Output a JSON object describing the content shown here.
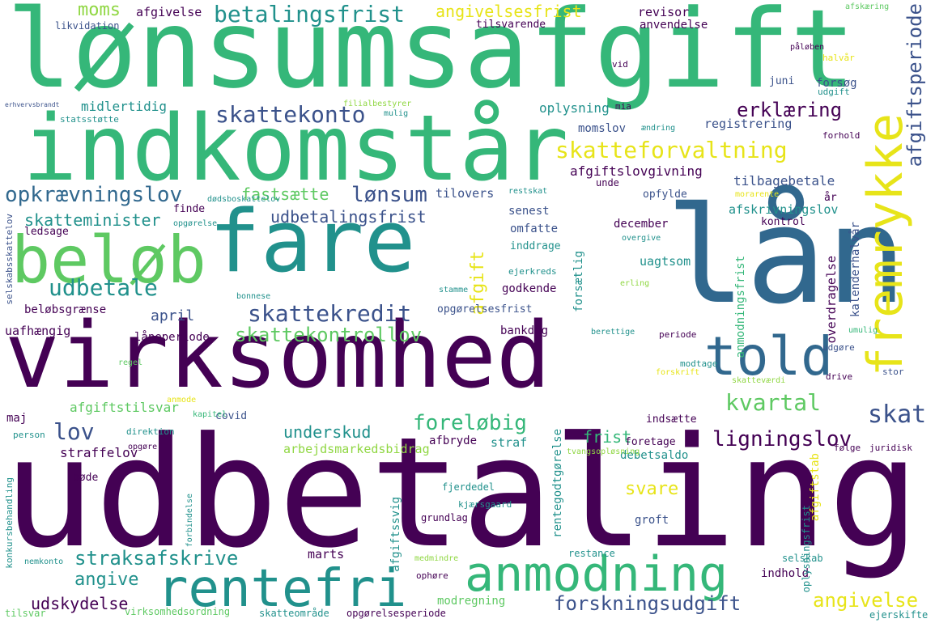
{
  "palette": {
    "dark_purple": "#440154",
    "indigo": "#3b528b",
    "blue": "#31688e",
    "teal": "#21918c",
    "green": "#35b779",
    "light_green": "#5ec962",
    "lime": "#90d743",
    "yellow": "#e7e419"
  },
  "words": {
    "lonsumsafgift": "lønsumsafgift",
    "indkomstar": "indkomstår",
    "fare": "fare",
    "laan": "lån",
    "belob": "beløb",
    "virksomhed": "virksomhed",
    "udbetaling": "udbetaling",
    "told": "told",
    "fremrykke": "fremrykke",
    "rentefri": "rentefri",
    "anmodning": "anmodning",
    "skattekredit": "skattekredit",
    "skatteforvaltning": "skatteforvaltning",
    "skattekonto": "skattekonto",
    "opkraevningslov": "opkrævningslov",
    "betalingsfrist": "betalingsfrist",
    "udbetale": "udbetale",
    "lonsum": "lønsum",
    "skattekontrollov": "skattekontrollov",
    "afgiftsperiode": "afgiftsperiode",
    "erklaering": "erklæring",
    "kvartal": "kvartal",
    "skat": "skat",
    "lov": "lov",
    "forelobig": "foreløbig",
    "ligningslov": "ligningslov",
    "straksafskrive": "straksafskrive",
    "forskningsudgift": "forskningsudgift",
    "angivelse": "angivelse",
    "angive": "angive",
    "udskydelse": "udskydelse",
    "moms": "moms",
    "angivelsesfrist": "angivelsesfrist",
    "udbetalingsfrist": "udbetalingsfrist",
    "skatteminister": "skatteminister",
    "fastsaette": "fastsætte",
    "underskud": "underskud",
    "afgift": "afgift",
    "svare": "svare",
    "frist": "frist",
    "april": "april",
    "afgivelse": "afgivelse",
    "revisor": "revisor",
    "anvendelse": "anvendelse",
    "tilsvarende": "tilsvarende",
    "likvidation": "likvidation",
    "midlertidig": "midlertidig",
    "oplysning": "oplysning",
    "momslov": "momslov",
    "registrering": "registrering",
    "afgiftslovgivning": "afgiftslovgivning",
    "tilbagebetale": "tilbagebetale",
    "unde": "unde",
    "opfylde": "opfylde",
    "tilovers": "tilovers",
    "senest": "senest",
    "omfatte": "omfatte",
    "inddrage": "inddrage",
    "december": "december",
    "afskrivningslov": "afskrivningslov",
    "kontrol": "kontrol",
    "aar": "år",
    "uagtsom": "uagtsom",
    "godkende": "godkende",
    "bankdag": "bankdag",
    "opgorelsesfrist": "opgørelsesfrist",
    "laneperiode": "låneperiode",
    "uafhaengig": "uafhængig",
    "belobsgraense": "beløbsgrænse",
    "ledsage": "ledsage",
    "finde": "finde",
    "forsog": "forsøg",
    "juni": "juni",
    "restskat": "restskat",
    "periode": "periode",
    "udgore": "udgøre",
    "modtage": "modtage",
    "drive": "drive",
    "stor": "stor",
    "afgiftstilsvar": "afgiftstilsvar",
    "maj": "maj",
    "covid": "covid",
    "indsaette": "indsætte",
    "straffelov": "straffelov",
    "arbejdsmarkedsbidrag": "arbejdsmarkedsbidrag",
    "afbryde": "afbryde",
    "straf": "straf",
    "foretage": "foretage",
    "debetsaldo": "debetsaldo",
    "bode": "bøde",
    "groft": "groft",
    "fjerdedel": "fjerdedel",
    "grundlag": "grundlag",
    "marts": "marts",
    "restance": "restance",
    "selskab": "selskab",
    "indhold": "indhold",
    "modregning": "modregning",
    "ophore": "ophøre",
    "virksomhedsordning": "virksomhedsordning",
    "skatteomraade": "skatteområde",
    "opgorelsesperiode": "opgørelsesperiode",
    "tilsvar": "tilsvar",
    "ejerskifte": "ejerskifte",
    "overdragelse": "overdragelse",
    "kalenderhalvaar": "kalenderhalvår",
    "anmodningsfrist": "anmodningsfrist",
    "afgiftstab": "afgiftstab",
    "afgiftssvig": "afgiftssvig",
    "rentegodtgorelse": "rentegodtgørelse",
    "forsaetlig": "forsætlig",
    "oplysningsfrist": "oplysningsfrist",
    "selskabsskattelov": "selskabsskattelov",
    "konkursbehandling": "konkursbehandling",
    "person": "person",
    "nemkonto": "nemkonto",
    "direktion": "direktion",
    "kapitel": "kapitel",
    "regel": "regel",
    "statsstotte": "statsstøtte",
    "filialbestyrer": "filialbestyrer",
    "mulig": "mulig",
    "mia": "mia",
    "andring": "ændring",
    "forhold": "forhold",
    "vid": "vid",
    "udgift": "udgift",
    "halvaar": "halvår",
    "afskaering": "afskæring",
    "paaleben": "påløben",
    "umulig": "umulig",
    "berettige": "berettige",
    "erling": "erling",
    "overgive": "overgive",
    "ejerkreds": "ejerkreds",
    "forskrift": "forskrift",
    "skattevaerdi": "skatteværdi",
    "folge": "følge",
    "juridisk": "juridisk",
    "tvangsoplosning": "tvangsopløsning",
    "kjaersgaard": "kjærsgaard",
    "stamme": "stamme",
    "bonnese": "bonnese",
    "dodsboskattelov": "dødsboskattelov",
    "opgorelse": "opgørelse",
    "morarente": "morarente",
    "opgore": "opgøre",
    "forbindelse": "forbindelse",
    "medmindre": "medmindre",
    "anmode": "anmode",
    "onde": "ønde",
    "erhvervsbrandt": "erhvervsbrandt"
  }
}
